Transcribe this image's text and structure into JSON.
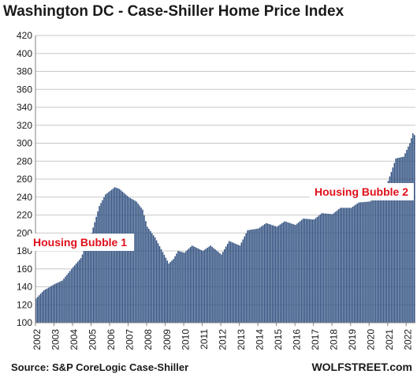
{
  "chart_data": {
    "type": "bar",
    "title": "Washington DC - Case-Shiller Home Price Index",
    "xlabel": "",
    "ylabel": "",
    "ylim": [
      100,
      420
    ],
    "yticks": [
      100,
      120,
      140,
      160,
      180,
      200,
      220,
      240,
      260,
      280,
      300,
      320,
      340,
      360,
      380,
      400,
      420
    ],
    "xticks": [
      "2002",
      "2003",
      "2004",
      "2005",
      "2006",
      "2007",
      "2008",
      "2009",
      "2010",
      "2011",
      "2012",
      "2013",
      "2014",
      "2015",
      "2016",
      "2017",
      "2018",
      "2019",
      "2020",
      "2021",
      "2022"
    ],
    "grid": true,
    "legend": "none",
    "bar_color": "#2f4f7f",
    "frequency": "monthly",
    "start": "2002-01",
    "end": "2022-06",
    "anchors": [
      [
        "2002-01",
        127
      ],
      [
        "2002-06",
        136
      ],
      [
        "2003-01",
        143
      ],
      [
        "2003-06",
        147
      ],
      [
        "2004-01",
        162
      ],
      [
        "2004-06",
        172
      ],
      [
        "2005-01",
        200
      ],
      [
        "2005-06",
        230
      ],
      [
        "2005-10",
        243
      ],
      [
        "2006-01",
        247
      ],
      [
        "2006-04",
        251
      ],
      [
        "2006-07",
        249
      ],
      [
        "2007-01",
        240
      ],
      [
        "2007-06",
        235
      ],
      [
        "2007-10",
        226
      ],
      [
        "2008-01",
        207
      ],
      [
        "2008-06",
        195
      ],
      [
        "2008-10",
        182
      ],
      [
        "2009-03",
        166
      ],
      [
        "2009-06",
        171
      ],
      [
        "2009-09",
        180
      ],
      [
        "2010-01",
        178
      ],
      [
        "2010-06",
        186
      ],
      [
        "2011-01",
        180
      ],
      [
        "2011-06",
        186
      ],
      [
        "2012-01",
        176
      ],
      [
        "2012-06",
        191
      ],
      [
        "2013-01",
        186
      ],
      [
        "2013-06",
        203
      ],
      [
        "2014-01",
        205
      ],
      [
        "2014-06",
        211
      ],
      [
        "2015-01",
        207
      ],
      [
        "2015-06",
        213
      ],
      [
        "2016-01",
        209
      ],
      [
        "2016-06",
        216
      ],
      [
        "2017-01",
        215
      ],
      [
        "2017-06",
        222
      ],
      [
        "2018-01",
        221
      ],
      [
        "2018-06",
        228
      ],
      [
        "2019-01",
        228
      ],
      [
        "2019-06",
        234
      ],
      [
        "2020-01",
        235
      ],
      [
        "2020-06",
        240
      ],
      [
        "2021-01",
        258
      ],
      [
        "2021-06",
        283
      ],
      [
        "2021-11",
        285
      ],
      [
        "2022-03",
        300
      ],
      [
        "2022-05",
        311
      ],
      [
        "2022-06",
        309
      ]
    ],
    "annotations": [
      {
        "text": "Housing Bubble 1",
        "color": "#e0101a"
      },
      {
        "text": "Housing Bubble 2",
        "color": "#e0101a"
      }
    ]
  },
  "footer": {
    "source": "Source: S&P CoreLogic Case-Shiller",
    "brand": "WOLFSTREET.com"
  }
}
